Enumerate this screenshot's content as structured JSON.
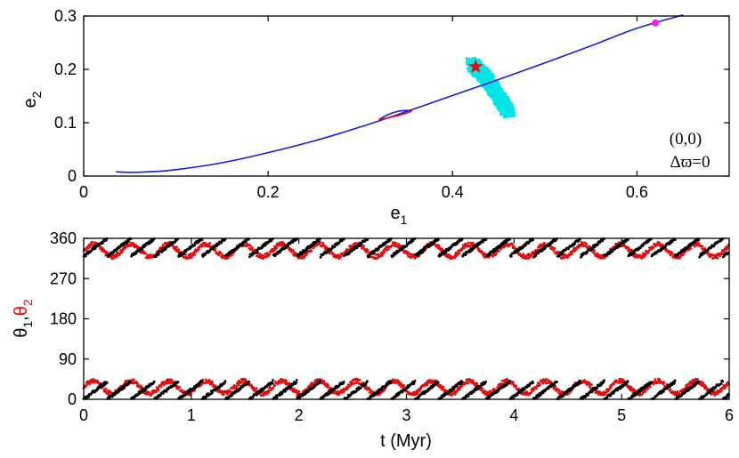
{
  "chart_data": [
    {
      "type": "line",
      "xlabel": "e",
      "xlabel_sub": "1",
      "ylabel": "e",
      "ylabel_sub": "2",
      "xlim": [
        0,
        0.7
      ],
      "ylim": [
        0,
        0.3
      ],
      "xticks": [
        0,
        0.2,
        0.4,
        0.6
      ],
      "xtick_labels": [
        "0",
        "0.2",
        "0.4",
        "0.6"
      ],
      "yticks": [
        0,
        0.1,
        0.2,
        0.3
      ],
      "ytick_labels": [
        "0",
        "0.1",
        "0.2",
        "0.3"
      ],
      "annotation": [
        "(0,0)",
        "Δϖ=0"
      ],
      "colors": {
        "curve": "#1a1adc",
        "branch": "#e01010",
        "cloud": "#00e5e5",
        "star": "#e01010",
        "dot": "#ee22ee"
      },
      "series": [
        {
          "color": "#1a1adc",
          "x": [
            0.035,
            0.05,
            0.07,
            0.1,
            0.15,
            0.2,
            0.25,
            0.3,
            0.35,
            0.4,
            0.45,
            0.5,
            0.55,
            0.6,
            0.65
          ],
          "y": [
            0.008,
            0.007,
            0.008,
            0.012,
            0.025,
            0.044,
            0.066,
            0.092,
            0.121,
            0.151,
            0.181,
            0.212,
            0.244,
            0.277,
            0.302
          ]
        },
        {
          "color": "#1a1adc",
          "x": [
            0.32,
            0.33,
            0.34,
            0.35,
            0.356
          ],
          "y": [
            0.106,
            0.115,
            0.121,
            0.123,
            0.122
          ]
        },
        {
          "color": "#e01010",
          "x": [
            0.32,
            0.335,
            0.35,
            0.356
          ],
          "y": [
            0.106,
            0.111,
            0.118,
            0.122
          ]
        }
      ],
      "cloud": {
        "color": "#00e5e5",
        "x": [
          0.422,
          0.425,
          0.43,
          0.434,
          0.44,
          0.446,
          0.452,
          0.458,
          0.461
        ],
        "y": [
          0.212,
          0.203,
          0.196,
          0.188,
          0.175,
          0.16,
          0.143,
          0.127,
          0.12
        ]
      },
      "markers": [
        {
          "shape": "star",
          "x": 0.425,
          "y": 0.205,
          "color": "#e01010"
        },
        {
          "shape": "circle",
          "x": 0.62,
          "y": 0.287,
          "color": "#ee22ee"
        }
      ]
    },
    {
      "type": "scatter",
      "xlabel": "t (Myr)",
      "ylabel_parts": [
        "θ",
        "1",
        ",",
        "θ",
        "2"
      ],
      "xlim": [
        0,
        6
      ],
      "ylim": [
        0,
        360
      ],
      "xticks": [
        0,
        1,
        2,
        3,
        4,
        5,
        6
      ],
      "xtick_labels": [
        "0",
        "1",
        "2",
        "3",
        "4",
        "5",
        "6"
      ],
      "yticks": [
        0,
        90,
        180,
        270,
        360
      ],
      "ytick_labels": [
        "0",
        "90",
        "180",
        "270",
        "360"
      ],
      "series": [
        {
          "color": "#000000",
          "description_bands": [
            [
              0,
              40
            ],
            [
              320,
              360
            ]
          ],
          "drift_period_myr": 0.22
        },
        {
          "color": "#e01010",
          "description_bands": [
            [
              10,
              45
            ],
            [
              315,
              350
            ]
          ],
          "oscillation_period_myr": 0.35
        }
      ]
    }
  ]
}
